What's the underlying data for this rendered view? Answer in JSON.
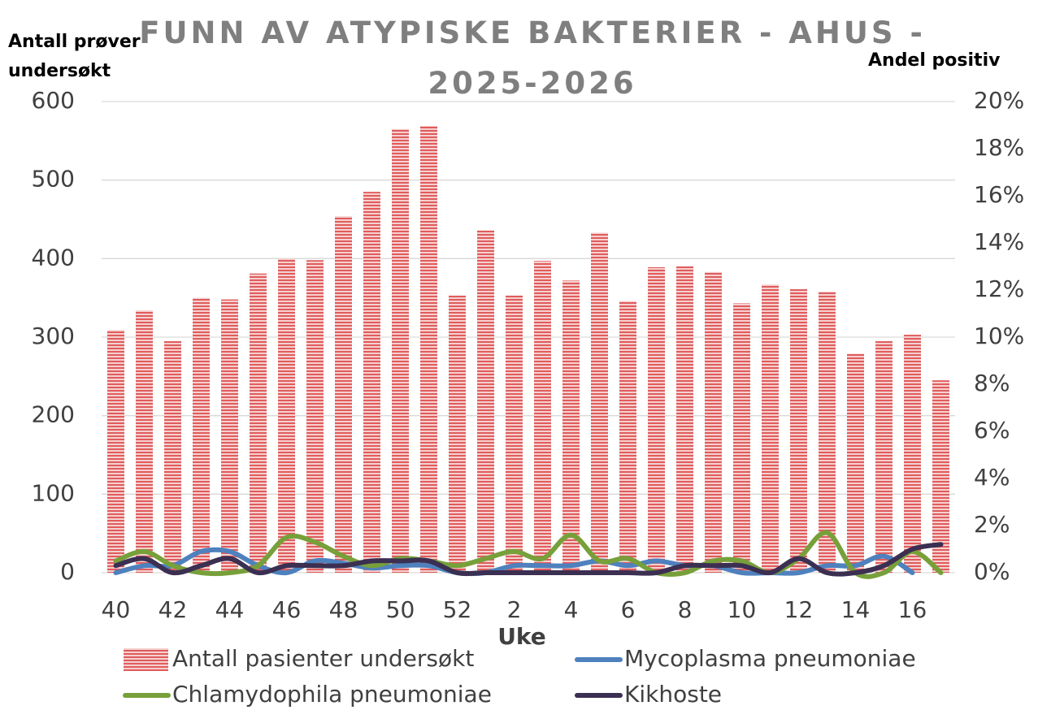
{
  "chart_data": {
    "type": "bar",
    "title": "FUNN AV ATYPISKE BAKTERIER - AHUS - 2025-2026",
    "ylabel": "Antall prøver undersøkt",
    "y2label": "Andel positiv",
    "xlabel": "Uke",
    "categories": [
      "40",
      null,
      "42",
      null,
      "44",
      null,
      "46",
      null,
      "48",
      null,
      "50",
      null,
      "52",
      null,
      "2",
      null,
      "4",
      null,
      "6",
      null,
      "8",
      null,
      "10",
      null,
      "12",
      null,
      "14",
      null,
      "16",
      null
    ],
    "ylim": [
      0,
      600
    ],
    "yticks": [
      0,
      100,
      200,
      300,
      400,
      500,
      600
    ],
    "y2lim": [
      0,
      20
    ],
    "y2ticks": [
      {
        "value": 0,
        "label": "0%"
      },
      {
        "value": 2,
        "label": "2%"
      },
      {
        "value": 4,
        "label": "4%"
      },
      {
        "value": 6,
        "label": "6%"
      },
      {
        "value": 8,
        "label": "8%"
      },
      {
        "value": 10,
        "label": "10%"
      },
      {
        "value": 12,
        "label": "12%"
      },
      {
        "value": 14,
        "label": "14%"
      },
      {
        "value": 16,
        "label": "16%"
      },
      {
        "value": 18,
        "label": "18%"
      },
      {
        "value": 20,
        "label": "20%"
      }
    ],
    "grid": true,
    "series": [
      {
        "name": "Antall pasienter undersøkt",
        "type": "bar",
        "color": "#e05c5c",
        "axis": "y",
        "values": [
          309,
          334,
          295,
          350,
          348,
          381,
          400,
          398,
          454,
          485,
          565,
          569,
          353,
          436,
          353,
          397,
          372,
          433,
          346,
          389,
          390,
          383,
          343,
          367,
          361,
          358,
          279,
          295,
          303,
          245
        ]
      },
      {
        "name": "Mycoplasma pneumoniae",
        "type": "line",
        "color": "#4e81bd",
        "axis": "y2",
        "values": [
          0,
          0.3,
          0.3,
          0.9,
          0.9,
          0.3,
          0,
          0.5,
          0.4,
          0.2,
          0.3,
          0.3,
          0,
          0,
          0.3,
          0.3,
          0.3,
          0.5,
          0.3,
          0.5,
          0.3,
          0.3,
          0,
          0,
          0,
          0.3,
          0.3,
          0.7,
          0,
          null
        ]
      },
      {
        "name": "Chlamydophila pneumoniae",
        "type": "line",
        "color": "#77a03a",
        "axis": "y2",
        "values": [
          0.5,
          0.9,
          0.3,
          0,
          0,
          0.3,
          1.5,
          1.3,
          0.7,
          0.3,
          0.6,
          0.5,
          0.3,
          0.6,
          0.9,
          0.6,
          1.6,
          0.5,
          0.6,
          0,
          0,
          0.5,
          0.5,
          0,
          0.6,
          1.7,
          0,
          0,
          0.9,
          0
        ]
      },
      {
        "name": "Kikhoste",
        "type": "line",
        "color": "#3b2f52",
        "axis": "y2",
        "values": [
          0.3,
          0.6,
          0,
          0.3,
          0.6,
          0,
          0.3,
          0.3,
          0.3,
          0.5,
          0.5,
          0.5,
          0,
          0,
          0,
          0,
          0,
          0,
          0,
          0,
          0.3,
          0.3,
          0.3,
          0,
          0.6,
          0,
          0,
          0.3,
          1.0,
          1.2
        ]
      }
    ]
  }
}
